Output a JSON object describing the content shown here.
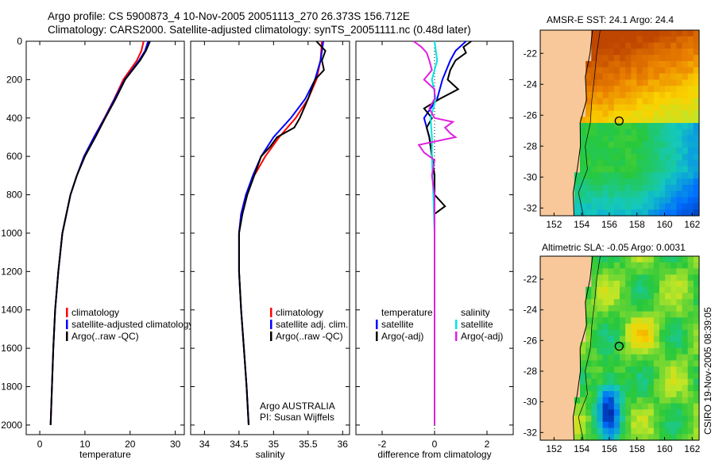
{
  "header": {
    "title_line1": "Argo profile: CS 5900873_4 10-Nov-2005 20051113_270 26.373S 156.712E",
    "title_line2": "Climatology: CARS2000. Satellite-adjusted climatology: synTS_20051111.nc (0.48d later)"
  },
  "side_label": "CSIRO 19-Nov-2005 08:39:05",
  "colors": {
    "climatology": "#ff0000",
    "satellite": "#0000ff",
    "argo": "#000000",
    "sal_satellite": "#00e5e5",
    "sal_argo": "#e020e0"
  },
  "chart_data": [
    {
      "id": "temperature",
      "type": "line",
      "xlabel": "temperature",
      "ylabel": "",
      "xlim": [
        -3,
        32
      ],
      "ylim": [
        2050,
        0
      ],
      "xticks": [
        0,
        10,
        20,
        30
      ],
      "yticks": [
        0,
        200,
        400,
        600,
        800,
        1000,
        1200,
        1400,
        1600,
        1800,
        2000
      ],
      "legend": [
        "climatology",
        "satellite-adjusted climatology",
        "Argo(..raw -QC)"
      ],
      "series": [
        {
          "name": "climatology",
          "color": "#ff0000",
          "depth": [
            0,
            50,
            100,
            200,
            300,
            400,
            500,
            600,
            700,
            800,
            1000,
            1200,
            1400,
            1600,
            1800,
            2000
          ],
          "values": [
            23.0,
            22.5,
            21.5,
            18.5,
            16.5,
            14.3,
            12.0,
            9.8,
            8.2,
            6.8,
            5.0,
            4.1,
            3.4,
            3.0,
            2.7,
            2.4
          ]
        },
        {
          "name": "satellite-adjusted climatology",
          "color": "#0000ff",
          "depth": [
            0,
            50,
            100,
            200,
            300,
            400,
            500,
            600,
            700,
            800,
            1000,
            1200,
            1400,
            1600,
            1800,
            2000
          ],
          "values": [
            24.0,
            23.3,
            22.0,
            18.8,
            16.6,
            14.4,
            12.0,
            9.8,
            8.2,
            6.8,
            5.0,
            4.1,
            3.4,
            3.0,
            2.7,
            2.4
          ]
        },
        {
          "name": "Argo(..raw -QC)",
          "color": "#000000",
          "depth": [
            0,
            50,
            100,
            200,
            300,
            400,
            500,
            600,
            700,
            800,
            1000,
            1200,
            1400,
            1600,
            1800,
            2000
          ],
          "values": [
            24.4,
            23.5,
            22.2,
            18.9,
            16.8,
            14.5,
            12.3,
            10.0,
            8.2,
            6.8,
            5.0,
            4.1,
            3.4,
            3.0,
            2.7,
            2.4
          ]
        }
      ]
    },
    {
      "id": "salinity",
      "type": "line",
      "xlabel": "salinity",
      "ylabel": "",
      "xlim": [
        33.8,
        36.1
      ],
      "ylim": [
        2050,
        0
      ],
      "xticks": [
        34,
        34.5,
        35,
        35.5,
        36
      ],
      "yticks": [
        0,
        200,
        400,
        600,
        800,
        1000,
        1200,
        1400,
        1600,
        1800,
        2000
      ],
      "legend": [
        "climatology",
        "satellite adj. clim.",
        "Argo(..raw -QC)"
      ],
      "annotation": [
        "Argo AUSTRALIA",
        "PI: Susan Wijffels"
      ],
      "series": [
        {
          "name": "climatology",
          "color": "#ff0000",
          "depth": [
            0,
            100,
            200,
            300,
            400,
            500,
            600,
            700,
            800,
            900,
            1000,
            1200,
            1400,
            1600,
            1800,
            2000
          ],
          "values": [
            35.7,
            35.68,
            35.62,
            35.5,
            35.32,
            35.08,
            34.88,
            34.72,
            34.6,
            34.53,
            34.5,
            34.5,
            34.53,
            34.57,
            34.61,
            34.64
          ]
        },
        {
          "name": "satellite adj. clim.",
          "color": "#0000ff",
          "depth": [
            0,
            100,
            200,
            300,
            400,
            500,
            600,
            700,
            800,
            900,
            1000,
            1200,
            1400,
            1600,
            1800,
            2000
          ],
          "values": [
            35.72,
            35.68,
            35.6,
            35.46,
            35.25,
            35.0,
            34.82,
            34.7,
            34.6,
            34.53,
            34.5,
            34.5,
            34.53,
            34.57,
            34.61,
            34.64
          ]
        },
        {
          "name": "Argo(..raw -QC)",
          "color": "#000000",
          "depth": [
            0,
            50,
            100,
            150,
            200,
            300,
            400,
            450,
            500,
            550,
            600,
            700,
            800,
            900,
            1000,
            1200,
            1400,
            1600,
            1800,
            2000
          ],
          "values": [
            35.62,
            35.75,
            35.7,
            35.73,
            35.6,
            35.5,
            35.38,
            35.3,
            35.05,
            34.95,
            34.82,
            34.72,
            34.62,
            34.55,
            34.5,
            34.5,
            34.53,
            34.57,
            34.61,
            34.64
          ]
        }
      ]
    },
    {
      "id": "difference",
      "type": "line",
      "xlabel": "difference from climatology",
      "ylabel": "",
      "xlim": [
        -3,
        3
      ],
      "ylim": [
        2050,
        0
      ],
      "xticks": [
        -2,
        0,
        2
      ],
      "yticks": [
        0,
        200,
        400,
        600,
        800,
        1000,
        1200,
        1400,
        1600,
        1800,
        2000
      ],
      "legend_groups": [
        {
          "heading": "temperature",
          "entries": [
            "satellite",
            "Argo(-adj)"
          ]
        },
        {
          "heading": "salinity",
          "entries": [
            "satellite",
            "Argo(-adj)"
          ]
        }
      ],
      "series": [
        {
          "name": "temperature satellite",
          "color": "#0000ff",
          "depth": [
            0,
            50,
            100,
            200,
            300,
            400,
            500,
            600,
            700,
            800,
            1000,
            1400,
            2000
          ],
          "values": [
            1.2,
            0.8,
            0.6,
            0.3,
            0.1,
            -0.4,
            -0.2,
            -0.1,
            0.0,
            0.0,
            0.0,
            0.0,
            0.0
          ]
        },
        {
          "name": "temperature Argo(-adj)",
          "color": "#000000",
          "depth": [
            0,
            30,
            60,
            100,
            150,
            200,
            250,
            300,
            350,
            400,
            450,
            500,
            600,
            700,
            800,
            860,
            900,
            1000,
            1400,
            2000
          ],
          "values": [
            1.4,
            1.1,
            1.2,
            0.8,
            0.6,
            0.5,
            0.9,
            0.2,
            -0.4,
            -0.1,
            -0.3,
            -0.2,
            -0.1,
            0.0,
            0.0,
            0.4,
            0.0,
            0.0,
            0.0,
            0.0
          ]
        },
        {
          "name": "salinity satellite",
          "color": "#00e5e5",
          "depth": [
            0,
            50,
            100,
            200,
            300,
            400,
            500,
            600,
            800,
            1000,
            1400,
            2000
          ],
          "values": [
            0.0,
            0.05,
            0.1,
            -0.1,
            0.05,
            -0.15,
            -0.1,
            -0.1,
            -0.05,
            0.0,
            0.0,
            0.0
          ]
        },
        {
          "name": "salinity Argo(-adj)",
          "color": "#e020e0",
          "depth": [
            0,
            30,
            60,
            100,
            150,
            200,
            250,
            300,
            350,
            400,
            420,
            450,
            480,
            500,
            540,
            580,
            620,
            700,
            800,
            1000,
            1400,
            2000
          ],
          "values": [
            -0.8,
            -0.5,
            -0.3,
            -0.2,
            -0.1,
            -0.4,
            0.0,
            0.0,
            -0.2,
            0.0,
            0.7,
            0.4,
            0.6,
            0.8,
            -0.6,
            -0.4,
            0.0,
            -0.1,
            0.0,
            0.0,
            0.0,
            0.0
          ]
        }
      ]
    },
    {
      "id": "amsr_sst_map",
      "type": "heatmap",
      "title": "AMSR-E SST: 24.1  Argo: 24.4",
      "xlim": [
        151,
        162.5
      ],
      "ylim": [
        -32.5,
        -20.5
      ],
      "xticks": [
        152,
        154,
        156,
        158,
        160,
        162
      ],
      "yticks": [
        -32,
        -30,
        -28,
        -26,
        -24,
        -22
      ],
      "marker": {
        "lon": 156.712,
        "lat": -26.373
      }
    },
    {
      "id": "altimetric_sla_map",
      "type": "heatmap",
      "title": "Altimetric SLA: -0.05  Argo: 0.0031",
      "xlim": [
        151,
        162.5
      ],
      "ylim": [
        -32.5,
        -20.5
      ],
      "xticks": [
        152,
        154,
        156,
        158,
        160,
        162
      ],
      "yticks": [
        -32,
        -30,
        -28,
        -26,
        -24,
        -22
      ],
      "marker": {
        "lon": 156.712,
        "lat": -26.373
      }
    }
  ]
}
